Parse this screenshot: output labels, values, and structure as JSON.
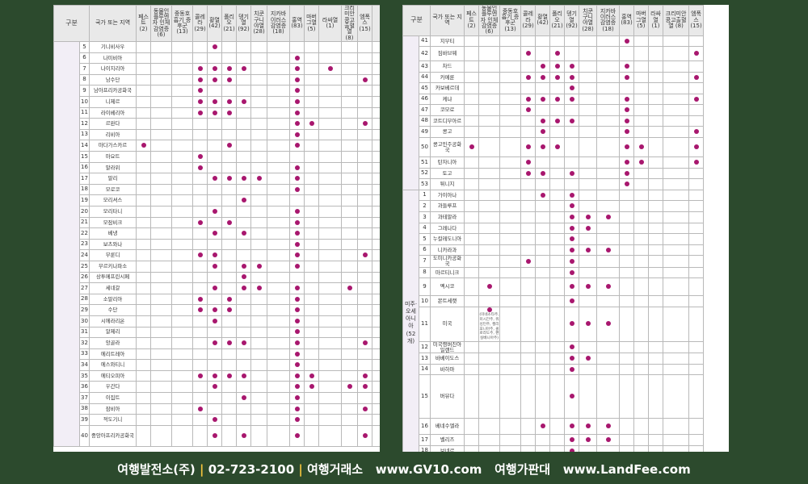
{
  "headers": [
    "구분",
    "국가 또는 지역",
    "페스트 (2)",
    "동물인플루엔자 인체감염증 (6)",
    "중동호흡기 증후군 (13)",
    "콜레라 (29)",
    "황열 (42)",
    "폴리오 (21)",
    "뎅기열 (92)",
    "치쿤 구니야열 (28)",
    "지카바이러스 감염증 (18)",
    "홍역 (83)",
    "마버그열 (5)",
    "라싸열 (1)",
    "크리미안 콩고출혈열 (8)",
    "엠폭스 (15)"
  ],
  "left_rows": [
    {
      "num": "5",
      "country": "기니비사우",
      "marks": [
        0,
        0,
        0,
        0,
        1,
        0,
        0,
        0,
        0,
        0,
        0,
        0,
        0,
        0
      ]
    },
    {
      "num": "6",
      "country": "나미비아",
      "marks": [
        0,
        0,
        0,
        0,
        0,
        0,
        0,
        0,
        0,
        1,
        0,
        0,
        0,
        0
      ]
    },
    {
      "num": "7",
      "country": "나이지리아",
      "marks": [
        0,
        0,
        0,
        1,
        1,
        1,
        1,
        0,
        0,
        1,
        0,
        1,
        0,
        0
      ]
    },
    {
      "num": "8",
      "country": "남수단",
      "marks": [
        0,
        0,
        0,
        1,
        1,
        1,
        0,
        0,
        0,
        1,
        0,
        0,
        0,
        1
      ]
    },
    {
      "num": "9",
      "country": "남아프리카공화국",
      "marks": [
        0,
        0,
        0,
        1,
        0,
        0,
        0,
        0,
        0,
        1,
        0,
        0,
        0,
        0
      ]
    },
    {
      "num": "10",
      "country": "니제르",
      "marks": [
        0,
        0,
        0,
        1,
        1,
        1,
        1,
        0,
        0,
        1,
        0,
        0,
        0,
        0
      ]
    },
    {
      "num": "11",
      "country": "라이베리아",
      "marks": [
        0,
        0,
        0,
        1,
        1,
        1,
        0,
        0,
        0,
        1,
        0,
        0,
        0,
        0
      ]
    },
    {
      "num": "12",
      "country": "르완다",
      "marks": [
        0,
        0,
        0,
        0,
        0,
        0,
        0,
        0,
        0,
        1,
        1,
        0,
        0,
        1
      ]
    },
    {
      "num": "13",
      "country": "리비아",
      "marks": [
        0,
        0,
        0,
        0,
        0,
        0,
        0,
        0,
        0,
        1,
        0,
        0,
        0,
        0
      ]
    },
    {
      "num": "14",
      "country": "마다가스카르",
      "marks": [
        1,
        0,
        0,
        0,
        0,
        1,
        0,
        0,
        0,
        1,
        0,
        0,
        0,
        0
      ]
    },
    {
      "num": "15",
      "country": "마요트",
      "marks": [
        0,
        0,
        0,
        1,
        0,
        0,
        0,
        0,
        0,
        0,
        0,
        0,
        0,
        0
      ]
    },
    {
      "num": "16",
      "country": "말라위",
      "marks": [
        0,
        0,
        0,
        1,
        0,
        0,
        0,
        0,
        0,
        1,
        0,
        0,
        0,
        0
      ]
    },
    {
      "num": "17",
      "country": "말리",
      "marks": [
        0,
        0,
        0,
        0,
        1,
        1,
        1,
        1,
        0,
        1,
        0,
        0,
        0,
        0
      ]
    },
    {
      "num": "18",
      "country": "모로코",
      "marks": [
        0,
        0,
        0,
        0,
        0,
        0,
        0,
        0,
        0,
        1,
        0,
        0,
        0,
        0
      ]
    },
    {
      "num": "19",
      "country": "모리셔스",
      "marks": [
        0,
        0,
        0,
        0,
        0,
        0,
        1,
        0,
        0,
        0,
        0,
        0,
        0,
        0
      ]
    },
    {
      "num": "20",
      "country": "모리타니",
      "marks": [
        0,
        0,
        0,
        0,
        1,
        0,
        0,
        0,
        0,
        1,
        0,
        0,
        0,
        0
      ]
    },
    {
      "num": "21",
      "country": "모잠비크",
      "marks": [
        0,
        0,
        0,
        1,
        0,
        1,
        0,
        0,
        0,
        1,
        0,
        0,
        0,
        0
      ]
    },
    {
      "num": "22",
      "country": "베냉",
      "marks": [
        0,
        0,
        0,
        0,
        1,
        0,
        1,
        0,
        0,
        1,
        0,
        0,
        0,
        0
      ]
    },
    {
      "num": "23",
      "country": "보츠와나",
      "marks": [
        0,
        0,
        0,
        0,
        0,
        0,
        0,
        0,
        0,
        1,
        0,
        0,
        0,
        0
      ]
    },
    {
      "num": "24",
      "country": "부룬디",
      "marks": [
        0,
        0,
        0,
        1,
        1,
        0,
        0,
        0,
        0,
        1,
        0,
        0,
        0,
        1
      ]
    },
    {
      "num": "25",
      "country": "부르키나파소",
      "marks": [
        0,
        0,
        0,
        0,
        1,
        0,
        1,
        1,
        0,
        1,
        0,
        0,
        0,
        0
      ]
    },
    {
      "num": "26",
      "country": "상투메프린시페",
      "marks": [
        0,
        0,
        0,
        0,
        0,
        0,
        1,
        0,
        0,
        0,
        0,
        0,
        0,
        0
      ]
    },
    {
      "num": "27",
      "country": "세네갈",
      "marks": [
        0,
        0,
        0,
        0,
        1,
        0,
        1,
        1,
        0,
        1,
        0,
        0,
        1,
        0
      ]
    },
    {
      "num": "28",
      "country": "소말리아",
      "marks": [
        0,
        0,
        0,
        1,
        0,
        1,
        0,
        0,
        0,
        1,
        0,
        0,
        0,
        0
      ]
    },
    {
      "num": "29",
      "country": "수단",
      "marks": [
        0,
        0,
        0,
        1,
        1,
        1,
        0,
        0,
        0,
        1,
        0,
        0,
        0,
        0
      ]
    },
    {
      "num": "30",
      "country": "시에라리온",
      "marks": [
        0,
        0,
        0,
        0,
        1,
        0,
        0,
        0,
        0,
        1,
        0,
        0,
        0,
        0
      ]
    },
    {
      "num": "31",
      "country": "알제리",
      "marks": [
        0,
        0,
        0,
        0,
        0,
        0,
        0,
        0,
        0,
        1,
        0,
        0,
        0,
        0
      ]
    },
    {
      "num": "32",
      "country": "앙골라",
      "marks": [
        0,
        0,
        0,
        0,
        1,
        1,
        1,
        0,
        0,
        1,
        0,
        0,
        0,
        1
      ]
    },
    {
      "num": "33",
      "country": "에리트레아",
      "marks": [
        0,
        0,
        0,
        0,
        0,
        0,
        0,
        0,
        0,
        1,
        0,
        0,
        0,
        0
      ]
    },
    {
      "num": "34",
      "country": "에스와티니",
      "marks": [
        0,
        0,
        0,
        0,
        0,
        0,
        0,
        0,
        0,
        1,
        0,
        0,
        0,
        0
      ]
    },
    {
      "num": "35",
      "country": "에티오피아",
      "marks": [
        0,
        0,
        0,
        1,
        1,
        1,
        1,
        0,
        0,
        1,
        1,
        0,
        0,
        1
      ]
    },
    {
      "num": "36",
      "country": "우간다",
      "marks": [
        0,
        0,
        0,
        0,
        1,
        0,
        0,
        0,
        0,
        1,
        1,
        0,
        1,
        1
      ]
    },
    {
      "num": "37",
      "country": "이집트",
      "marks": [
        0,
        0,
        0,
        0,
        0,
        0,
        1,
        0,
        0,
        1,
        0,
        0,
        0,
        0
      ]
    },
    {
      "num": "38",
      "country": "잠비아",
      "marks": [
        0,
        0,
        0,
        1,
        0,
        0,
        0,
        0,
        0,
        1,
        0,
        0,
        0,
        1
      ]
    },
    {
      "num": "39",
      "country": "적도기니",
      "marks": [
        0,
        0,
        0,
        0,
        1,
        0,
        0,
        0,
        0,
        1,
        0,
        0,
        0,
        0
      ]
    },
    {
      "num": "40",
      "country": "중앙아프리카공화국",
      "marks": [
        0,
        0,
        0,
        0,
        1,
        0,
        1,
        0,
        0,
        1,
        0,
        0,
        0,
        1
      ]
    }
  ],
  "right_rows": [
    {
      "num": "41",
      "country": "지부티",
      "marks": [
        0,
        0,
        0,
        0,
        0,
        0,
        0,
        0,
        0,
        1,
        0,
        0,
        0,
        0
      ]
    },
    {
      "num": "42",
      "country": "짐바브웨",
      "marks": [
        0,
        0,
        0,
        1,
        0,
        1,
        0,
        0,
        0,
        0,
        0,
        0,
        0,
        1
      ]
    },
    {
      "num": "43",
      "country": "차드",
      "marks": [
        0,
        0,
        0,
        0,
        1,
        1,
        1,
        0,
        0,
        1,
        0,
        0,
        0,
        0
      ]
    },
    {
      "num": "44",
      "country": "카메룬",
      "marks": [
        0,
        0,
        0,
        1,
        1,
        1,
        1,
        0,
        0,
        1,
        0,
        0,
        0,
        1
      ]
    },
    {
      "num": "45",
      "country": "카보베르데",
      "marks": [
        0,
        0,
        0,
        0,
        0,
        0,
        1,
        0,
        0,
        0,
        0,
        0,
        0,
        0
      ]
    },
    {
      "num": "46",
      "country": "케냐",
      "marks": [
        0,
        0,
        0,
        1,
        1,
        1,
        1,
        0,
        0,
        1,
        0,
        0,
        0,
        1
      ]
    },
    {
      "num": "47",
      "country": "코모로",
      "marks": [
        0,
        0,
        0,
        1,
        0,
        0,
        0,
        0,
        0,
        1,
        0,
        0,
        0,
        0
      ]
    },
    {
      "num": "48",
      "country": "코트디부아르",
      "marks": [
        0,
        0,
        0,
        0,
        1,
        1,
        1,
        0,
        0,
        1,
        0,
        0,
        0,
        0
      ]
    },
    {
      "num": "49",
      "country": "콩고",
      "marks": [
        0,
        0,
        0,
        0,
        1,
        0,
        0,
        0,
        0,
        1,
        0,
        0,
        0,
        1
      ]
    },
    {
      "num": "50",
      "country": "콩고민주공화국",
      "marks": [
        1,
        0,
        0,
        1,
        1,
        1,
        0,
        0,
        0,
        1,
        1,
        0,
        0,
        1
      ]
    },
    {
      "num": "51",
      "country": "탄자니아",
      "marks": [
        0,
        0,
        0,
        1,
        0,
        0,
        0,
        0,
        0,
        1,
        1,
        0,
        0,
        1
      ]
    },
    {
      "num": "52",
      "country": "토고",
      "marks": [
        0,
        0,
        0,
        1,
        1,
        0,
        1,
        0,
        0,
        1,
        0,
        0,
        0,
        0
      ]
    },
    {
      "num": "53",
      "country": "튀니지",
      "marks": [
        0,
        0,
        0,
        0,
        0,
        0,
        0,
        0,
        0,
        1,
        0,
        0,
        0,
        0
      ]
    },
    {
      "num": "1",
      "country": "가이아나",
      "marks": [
        0,
        0,
        0,
        0,
        1,
        0,
        1,
        0,
        0,
        0,
        0,
        0,
        0,
        0
      ]
    },
    {
      "num": "2",
      "country": "과들루프",
      "marks": [
        0,
        0,
        0,
        0,
        0,
        0,
        1,
        0,
        0,
        0,
        0,
        0,
        0,
        0
      ]
    },
    {
      "num": "3",
      "country": "과테말라",
      "marks": [
        0,
        0,
        0,
        0,
        0,
        0,
        1,
        1,
        1,
        0,
        0,
        0,
        0,
        0
      ]
    },
    {
      "num": "4",
      "country": "그레나다",
      "marks": [
        0,
        0,
        0,
        0,
        0,
        0,
        1,
        1,
        0,
        0,
        0,
        0,
        0,
        0
      ]
    },
    {
      "num": "5",
      "country": "누칼레도니아",
      "marks": [
        0,
        0,
        0,
        0,
        0,
        0,
        1,
        0,
        0,
        0,
        0,
        0,
        0,
        0
      ]
    },
    {
      "num": "6",
      "country": "니카라과",
      "marks": [
        0,
        0,
        0,
        0,
        0,
        0,
        1,
        1,
        1,
        0,
        0,
        0,
        0,
        0
      ]
    },
    {
      "num": "7",
      "country": "도미니카공화국",
      "marks": [
        0,
        0,
        0,
        1,
        0,
        0,
        1,
        0,
        0,
        0,
        0,
        0,
        0,
        0
      ]
    },
    {
      "num": "8",
      "country": "마르티니크",
      "marks": [
        0,
        0,
        0,
        0,
        0,
        0,
        1,
        0,
        0,
        0,
        0,
        0,
        0,
        0
      ]
    },
    {
      "num": "9",
      "country": "멕시코",
      "marks": [
        0,
        1,
        0,
        0,
        0,
        0,
        1,
        1,
        1,
        0,
        0,
        0,
        0,
        0
      ]
    },
    {
      "num": "10",
      "country": "몬트세랫",
      "marks": [
        0,
        0,
        0,
        0,
        0,
        0,
        1,
        0,
        0,
        0,
        0,
        0,
        0,
        0
      ]
    },
    {
      "num": "11",
      "country": "미국",
      "marks": [
        0,
        1,
        0,
        0,
        0,
        0,
        1,
        1,
        1,
        0,
        0,
        0,
        0,
        0
      ],
      "note": "(미네소타주, 미시간주, 워싱턴주, 캘리포니아주, 콜로라도주, 펜실베니아주)"
    },
    {
      "num": "12",
      "country": "미국령버진아일랜드",
      "marks": [
        0,
        0,
        0,
        0,
        0,
        0,
        1,
        0,
        0,
        0,
        0,
        0,
        0,
        0
      ]
    },
    {
      "num": "13",
      "country": "바베이도스",
      "marks": [
        0,
        0,
        0,
        0,
        0,
        0,
        1,
        1,
        0,
        0,
        0,
        0,
        0,
        0
      ]
    },
    {
      "num": "14",
      "country": "바하마",
      "marks": [
        0,
        0,
        0,
        0,
        0,
        0,
        1,
        0,
        0,
        0,
        0,
        0,
        0,
        0
      ]
    },
    {
      "num": "15",
      "country": "버뮤다",
      "marks": [
        0,
        0,
        0,
        0,
        0,
        0,
        1,
        0,
        0,
        0,
        0,
        0,
        0,
        0
      ]
    },
    {
      "num": "16",
      "country": "베네수엘라",
      "marks": [
        0,
        0,
        0,
        0,
        1,
        0,
        1,
        1,
        1,
        0,
        0,
        0,
        0,
        0
      ]
    },
    {
      "num": "17",
      "country": "벨리즈",
      "marks": [
        0,
        0,
        0,
        0,
        0,
        0,
        1,
        1,
        1,
        0,
        0,
        0,
        0,
        0
      ]
    },
    {
      "num": "18",
      "country": "보네르",
      "marks": [
        0,
        0,
        0,
        0,
        0,
        0,
        1,
        0,
        0,
        0,
        0,
        0,
        0,
        0
      ]
    }
  ],
  "region_america": "미주· 오세아니아 (52개)",
  "footer": {
    "company": "여행발전소(주)",
    "phone": "02-723-2100",
    "exchange_label": "여행거래소",
    "site1": "www.GV10.com",
    "fee_label": "여행가판대",
    "site2": "www.LandFee.com",
    "separator": "|"
  },
  "colors": {
    "dot": "#a8176e",
    "background": "#2c4a2d",
    "header": "#e9e9e9",
    "region": "#f2eef6"
  }
}
